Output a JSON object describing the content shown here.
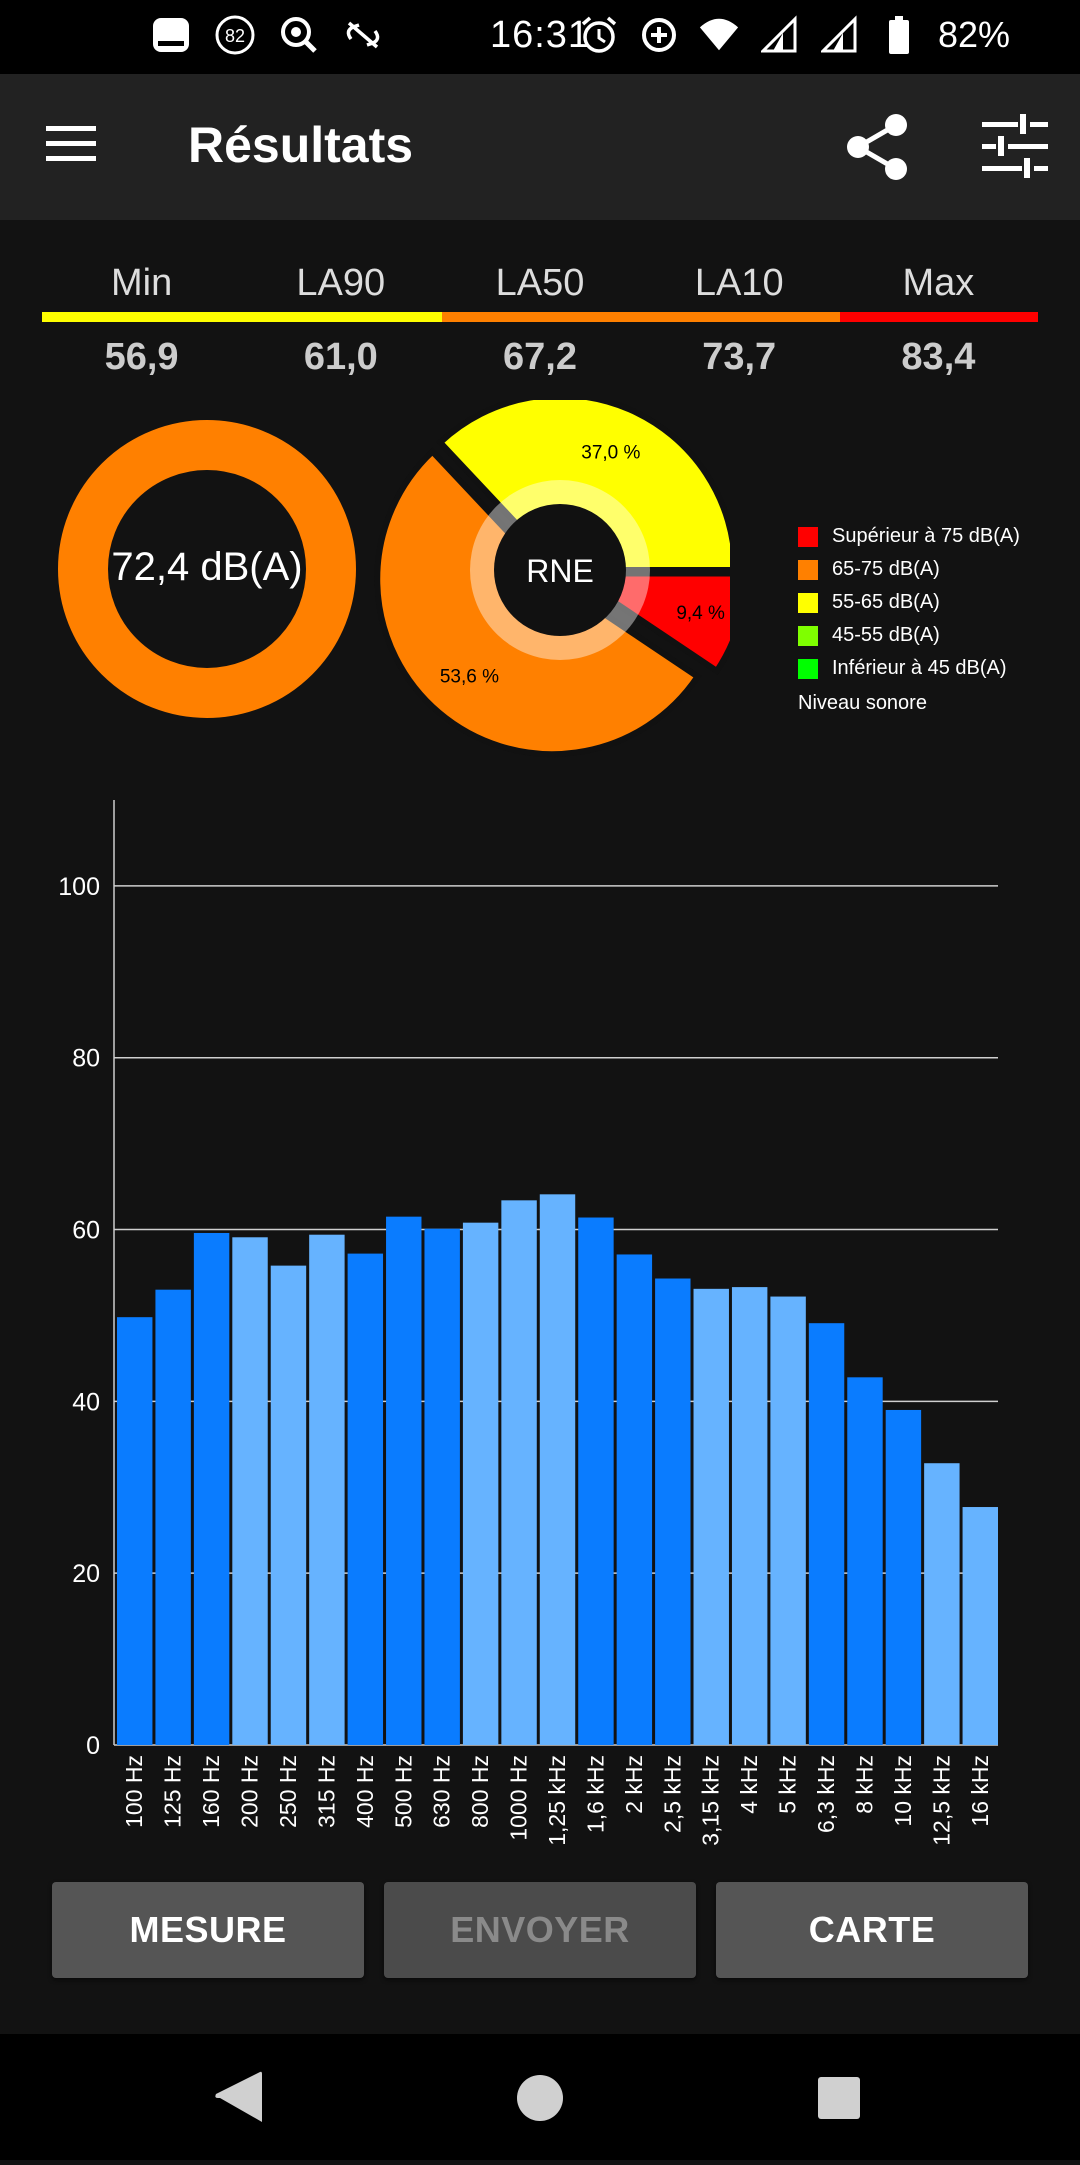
{
  "status_bar": {
    "time": "16:31",
    "battery_percent": "82%",
    "notification_badge": "82",
    "icons": [
      "notification-icon",
      "badge-82-icon",
      "search-app-icon",
      "link-off-icon",
      "alarm-icon",
      "data-saver-icon",
      "wifi-icon",
      "signal-icon",
      "signal-icon",
      "battery-icon"
    ]
  },
  "app_bar": {
    "title": "Résultats",
    "icons": [
      "menu-icon",
      "share-icon",
      "tune-icon"
    ]
  },
  "stats": {
    "labels": [
      "Min",
      "LA90",
      "LA50",
      "LA10",
      "Max"
    ],
    "values": [
      "56,9",
      "61,0",
      "67,2",
      "73,7",
      "83,4"
    ],
    "bar_colors": [
      "#ffff00",
      "#ffff00",
      "#ff8000",
      "#ff8000",
      "#ff0000"
    ]
  },
  "level_gauge": {
    "value_text": "72,4 dB(A)",
    "color": "#ff8000"
  },
  "pie": {
    "center_label": "RNE",
    "slices": [
      {
        "label": "9,4 %",
        "percent": 9.4,
        "color": "#ff0000"
      },
      {
        "label": "53,6 %",
        "percent": 53.6,
        "color": "#ff8000"
      },
      {
        "label": "37,0 %",
        "percent": 37.0,
        "color": "#ffff00"
      }
    ]
  },
  "legend": {
    "items": [
      {
        "label": "Supérieur à 75 dB(A)",
        "color": "#ff0000"
      },
      {
        "label": "65-75 dB(A)",
        "color": "#ff8000"
      },
      {
        "label": "55-65 dB(A)",
        "color": "#ffff00"
      },
      {
        "label": "45-55 dB(A)",
        "color": "#7fff00"
      },
      {
        "label": "Inférieur à 45 dB(A)",
        "color": "#00ff00"
      }
    ],
    "title": "Niveau sonore"
  },
  "chart_data": {
    "type": "bar",
    "categories": [
      "100 Hz",
      "125 Hz",
      "160 Hz",
      "200 Hz",
      "250 Hz",
      "315 Hz",
      "400 Hz",
      "500 Hz",
      "630 Hz",
      "800 Hz",
      "1000 Hz",
      "1,25 kHz",
      "1,6 kHz",
      "2 kHz",
      "2,5 kHz",
      "3,15 kHz",
      "4 kHz",
      "5 kHz",
      "6,3 kHz",
      "8 kHz",
      "10 kHz",
      "12,5 kHz",
      "16 kHz"
    ],
    "values": [
      49.8,
      53.0,
      59.6,
      59.1,
      55.8,
      59.4,
      57.2,
      61.5,
      60.1,
      60.8,
      63.4,
      64.1,
      61.4,
      57.1,
      54.3,
      53.1,
      53.3,
      52.2,
      49.1,
      42.8,
      39.0,
      32.8,
      27.7
    ],
    "colors": [
      "#0a7cff",
      "#0a7cff",
      "#0a7cff",
      "#66b3ff",
      "#66b3ff",
      "#66b3ff",
      "#0a7cff",
      "#0a7cff",
      "#0a7cff",
      "#66b3ff",
      "#66b3ff",
      "#66b3ff",
      "#0a7cff",
      "#0a7cff",
      "#0a7cff",
      "#66b3ff",
      "#66b3ff",
      "#66b3ff",
      "#0a7cff",
      "#0a7cff",
      "#0a7cff",
      "#66b3ff",
      "#66b3ff"
    ],
    "y_ticks": [
      0,
      20,
      40,
      60,
      80,
      100
    ],
    "ylim": [
      0,
      110
    ],
    "grid": true
  },
  "buttons": {
    "measure": "MESURE",
    "send": "ENVOYER",
    "map": "CARTE"
  },
  "nav_bar": {
    "icons": [
      "back-icon",
      "home-icon",
      "recents-icon"
    ]
  }
}
